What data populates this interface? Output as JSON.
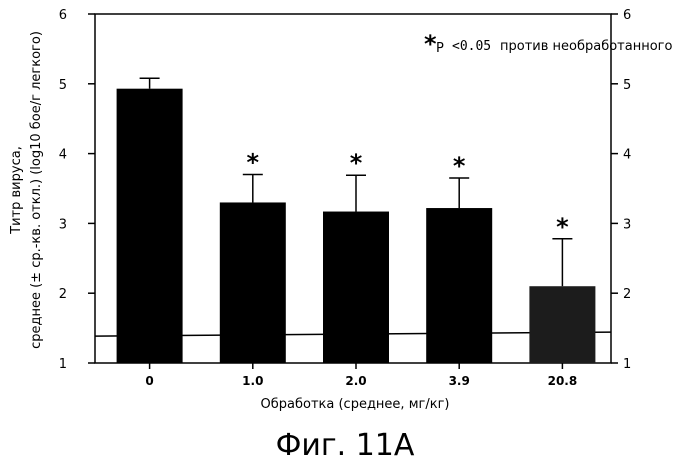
{
  "chart_data": {
    "type": "bar",
    "title": "",
    "xlabel": "Обработка (среднее, мг/кг)",
    "ylabel_line1": "Титр вируса,",
    "ylabel_line2": "среднее (± ср.-кв. откл.) (log10 бое/г легкого)",
    "categories": [
      "0",
      "1.0",
      "2.0",
      "3.9",
      "20.8"
    ],
    "values": [
      4.93,
      3.3,
      3.17,
      3.22,
      2.1
    ],
    "errors": [
      0.15,
      0.4,
      0.52,
      0.43,
      0.68
    ],
    "significant": [
      false,
      true,
      true,
      true,
      true
    ],
    "ylim": [
      1,
      6
    ],
    "yticks": [
      "1",
      "2",
      "3",
      "4",
      "5",
      "6"
    ],
    "reference_line": 1.4,
    "bar_color": "#000000",
    "last_bar_color": "#1c1c1c",
    "legend": {
      "symbol": "*",
      "prefix": "P",
      "threshold": "<0.05",
      "text": "против необработанного"
    }
  },
  "caption": "Фиг. 11А"
}
